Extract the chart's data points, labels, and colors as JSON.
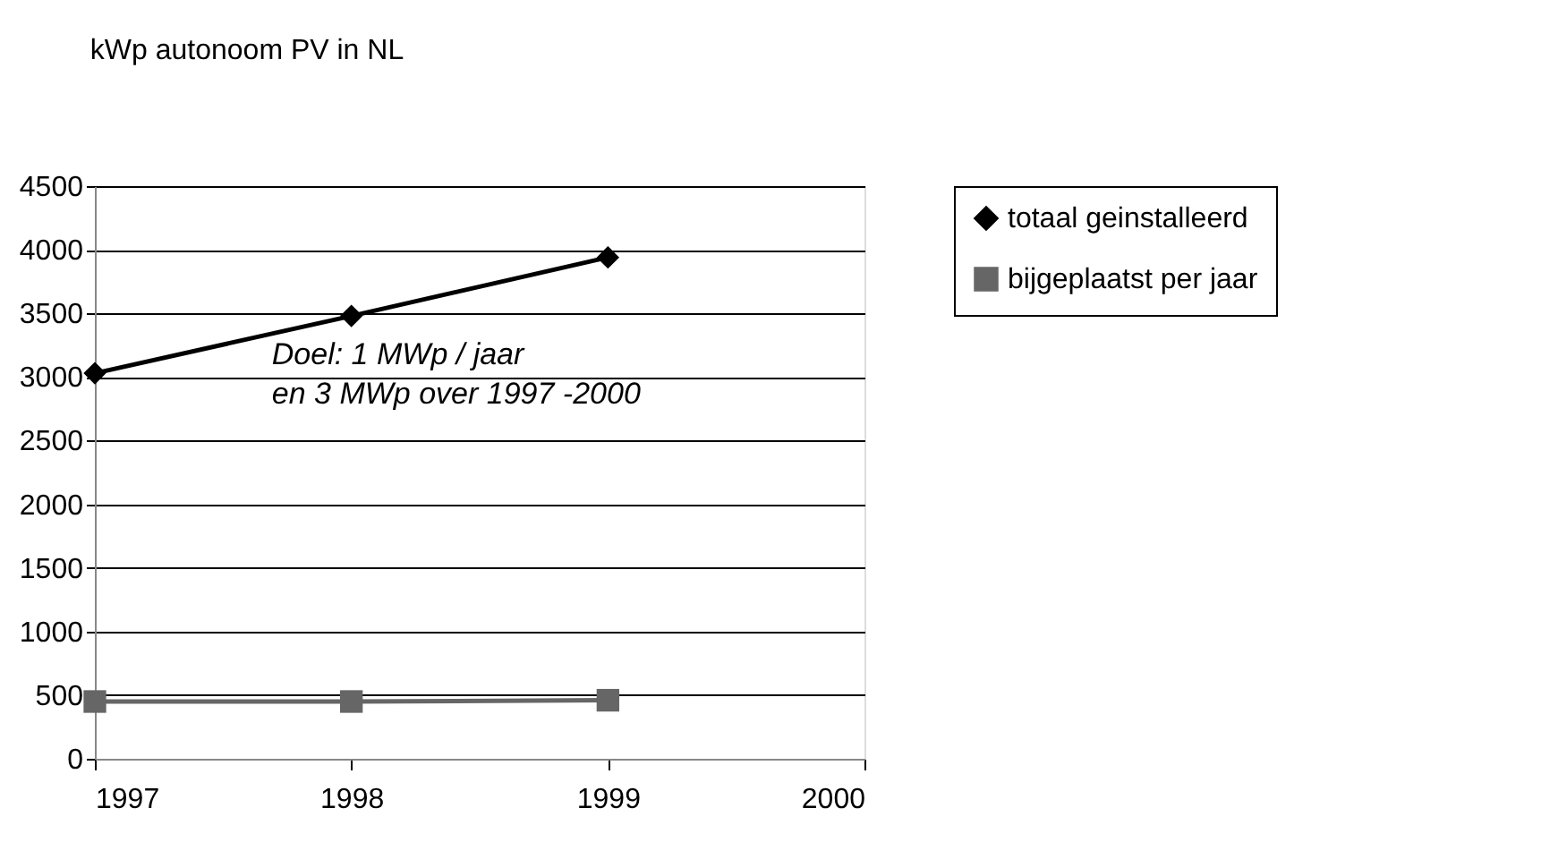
{
  "chart_data": {
    "type": "line",
    "title": "kWp autonoom PV in NL",
    "x": [
      1997,
      1998,
      1999
    ],
    "series": [
      {
        "name": "totaal geinstalleerd",
        "color": "#000000",
        "marker": "diamond",
        "values": [
          3030,
          3480,
          3940
        ]
      },
      {
        "name": "bijgeplaatst per jaar",
        "color": "#666666",
        "marker": "square",
        "values": [
          450,
          450,
          460
        ]
      }
    ],
    "xlim": [
      1997,
      2000
    ],
    "xticks": [
      1997,
      1998,
      1999,
      2000
    ],
    "ylim": [
      0,
      4500
    ],
    "yticks": [
      0,
      500,
      1000,
      1500,
      2000,
      2500,
      3000,
      3500,
      4000,
      4500
    ],
    "grid": "y",
    "legend": "top right",
    "line_style": "solid",
    "annotations": [
      "Doel: 1 MWp / jaar\nen 3 MWp over 1997 -2000"
    ]
  }
}
